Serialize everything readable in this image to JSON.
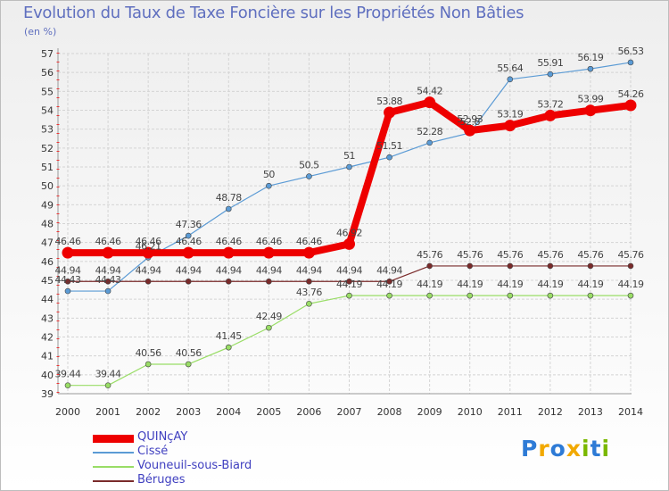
{
  "title": "Evolution du Taux de Taxe Foncière sur les Propriétés Non Bâties",
  "subtitle": "(en %)",
  "chart_data": {
    "type": "line",
    "title": "Evolution du Taux de Taxe Foncière sur les Propriétés Non Bâties",
    "ylabel": "(en %)",
    "xlabel": "",
    "x": [
      2000,
      2001,
      2002,
      2003,
      2004,
      2005,
      2006,
      2007,
      2008,
      2009,
      2010,
      2011,
      2012,
      2013,
      2014
    ],
    "ylim": [
      39,
      57
    ],
    "yticks": [
      39,
      40,
      41,
      42,
      43,
      44,
      45,
      46,
      47,
      48,
      49,
      50,
      51,
      52,
      53,
      54,
      55,
      56,
      57
    ],
    "grid": true,
    "legend_position": "bottom-left",
    "series": [
      {
        "name": "QUINçAY",
        "color": "#ee0000",
        "emphasis": true,
        "values": [
          46.46,
          46.46,
          46.46,
          46.46,
          46.46,
          46.46,
          46.46,
          46.92,
          53.88,
          54.42,
          52.93,
          53.19,
          53.72,
          53.99,
          54.26
        ],
        "labels": [
          "46.46",
          "46.46",
          "46.46",
          "46.46",
          "46.46",
          "46.46",
          "46.46",
          "46.92",
          "53.88",
          "54.42",
          "52.93",
          "53.19",
          "53.72",
          "53.99",
          "54.26"
        ]
      },
      {
        "name": "Cissé",
        "color": "#5b9bd5",
        "values": [
          44.43,
          44.43,
          46.21,
          47.36,
          48.78,
          50,
          50.5,
          51,
          51.51,
          52.28,
          52.8,
          55.64,
          55.91,
          56.19,
          56.53
        ],
        "labels": [
          "44.43",
          "44.43",
          "46.21",
          "47.36",
          "48.78",
          "50",
          "50.5",
          "51",
          "51.51",
          "52.28",
          "52.8",
          "55.64",
          "55.91",
          "56.19",
          "56.53"
        ]
      },
      {
        "name": "Vouneuil-sous-Biard",
        "color": "#99dd66",
        "values": [
          39.44,
          39.44,
          40.56,
          40.56,
          41.45,
          42.49,
          43.76,
          44.19,
          44.19,
          44.19,
          44.19,
          44.19,
          44.19,
          44.19,
          44.19
        ],
        "labels": [
          "39.44",
          "39.44",
          "40.56",
          "40.56",
          "41.45",
          "42.49",
          "43.76",
          "44.19",
          "44.19",
          "44.19",
          "44.19",
          "44.19",
          "44.19",
          "44.19",
          "44.19"
        ]
      },
      {
        "name": "Béruges",
        "color": "#7a2b2b",
        "values": [
          44.94,
          44.94,
          44.94,
          44.94,
          44.94,
          44.94,
          44.94,
          44.94,
          44.94,
          45.76,
          45.76,
          45.76,
          45.76,
          45.76,
          45.76
        ],
        "labels": [
          "44.94",
          "44.94",
          "44.94",
          "44.94",
          "44.94",
          "44.94",
          "44.94",
          "44.94",
          "44.94",
          "45.76",
          "45.76",
          "45.76",
          "45.76",
          "45.76",
          "45.76"
        ]
      }
    ]
  },
  "logo": {
    "letters": [
      "P",
      "r",
      "o",
      "x",
      "i",
      "t",
      "i"
    ],
    "colors": [
      "#2e7bd6",
      "#f2a900",
      "#2e7bd6",
      "#f2a900",
      "#7ab800",
      "#2e7bd6",
      "#7ab800"
    ]
  }
}
